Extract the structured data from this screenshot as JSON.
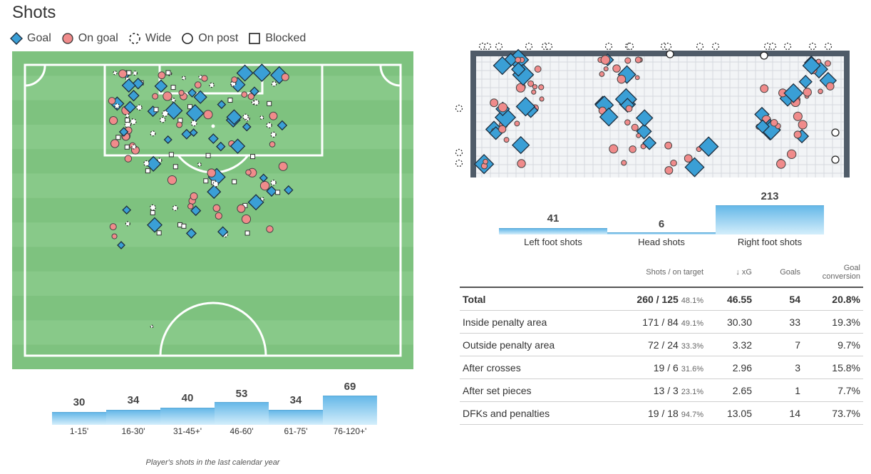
{
  "page": {
    "title": "Shots",
    "caption": "Player's shots in the last calendar year"
  },
  "legend": [
    {
      "label": "Goal",
      "icon": "goal-diamond-icon"
    },
    {
      "label": "On goal",
      "icon": "on-goal-circle-icon"
    },
    {
      "label": "Wide",
      "icon": "wide-dashed-circle-icon"
    },
    {
      "label": "On post",
      "icon": "on-post-circle-icon"
    },
    {
      "label": "Blocked",
      "icon": "blocked-square-icon"
    }
  ],
  "colors": {
    "pitch": "#7ec27f",
    "pitch_stripe": "#88c989",
    "goal": "#3a9fd6",
    "on_goal": "#f08b8b",
    "bar": "#66b8e8"
  },
  "foot": {
    "values": [
      41,
      6,
      213
    ],
    "labels": [
      "Left foot shots",
      "Head shots",
      "Right foot shots"
    ]
  },
  "table": {
    "headers": [
      "",
      "Shots / on target",
      "↓  xG",
      "Goals",
      "Goal conversion"
    ],
    "rows": [
      {
        "label": "Total",
        "shots": "260 / 125",
        "pct": "48.1%",
        "xg": "46.55",
        "goals": "54",
        "conv": "20.8%"
      },
      {
        "label": "Inside penalty area",
        "shots": "171 / 84",
        "pct": "49.1%",
        "xg": "30.30",
        "goals": "33",
        "conv": "19.3%"
      },
      {
        "label": "Outside penalty area",
        "shots": "72 / 24",
        "pct": "33.3%",
        "xg": "3.32",
        "goals": "7",
        "conv": "9.7%"
      },
      {
        "label": "After crosses",
        "shots": "19 / 6",
        "pct": "31.6%",
        "xg": "2.96",
        "goals": "3",
        "conv": "15.8%"
      },
      {
        "label": "After set pieces",
        "shots": "13 / 3",
        "pct": "23.1%",
        "xg": "2.65",
        "goals": "1",
        "conv": "7.7%"
      },
      {
        "label": "DFKs and penalties",
        "shots": "19 / 18",
        "pct": "94.7%",
        "xg": "13.05",
        "goals": "14",
        "conv": "73.7%"
      }
    ]
  },
  "chart_data": [
    {
      "type": "bar",
      "categories": [
        "Left foot shots",
        "Head shots",
        "Right foot shots"
      ],
      "values": [
        41,
        6,
        213
      ]
    },
    {
      "type": "bar",
      "categories": [
        "1-15'",
        "16-30'",
        "31-45+'",
        "46-60'",
        "61-75'",
        "76-120+'"
      ],
      "values": [
        30,
        34,
        40,
        53,
        34,
        69
      ]
    },
    {
      "type": "table",
      "columns": [
        "Shots / on target",
        "xG",
        "Goals",
        "Goal conversion"
      ],
      "rows": [
        [
          "Total",
          "260 / 125 48.1%",
          46.55,
          54,
          "20.8%"
        ],
        [
          "Inside penalty area",
          "171 / 84 49.1%",
          30.3,
          33,
          "19.3%"
        ],
        [
          "Outside penalty area",
          "72 / 24 33.3%",
          3.32,
          7,
          "9.7%"
        ],
        [
          "After crosses",
          "19 / 6 31.6%",
          2.96,
          3,
          "15.8%"
        ],
        [
          "After set pieces",
          "13 / 3 23.1%",
          2.65,
          1,
          "7.7%"
        ],
        [
          "DFKs and penalties",
          "19 / 18 94.7%",
          13.05,
          14,
          "73.7%"
        ]
      ]
    }
  ]
}
